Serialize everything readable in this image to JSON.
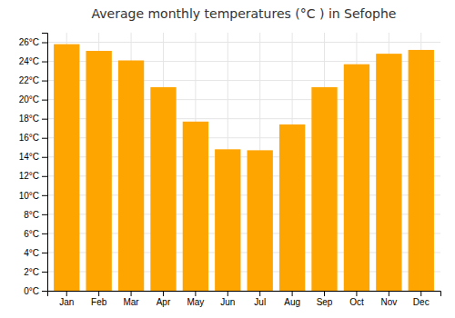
{
  "chart_data": {
    "type": "bar",
    "title": "Average monthly temperatures (°C ) in Sefophe",
    "categories": [
      "Jan",
      "Feb",
      "Mar",
      "Apr",
      "May",
      "Jun",
      "Jul",
      "Aug",
      "Sep",
      "Oct",
      "Nov",
      "Dec"
    ],
    "values": [
      25.8,
      25.1,
      24.1,
      21.3,
      17.7,
      14.8,
      14.7,
      17.4,
      21.3,
      23.7,
      24.8,
      25.2
    ],
    "color": "#FFA500",
    "ylim": [
      0,
      27
    ],
    "yticks": [
      {
        "value": 0,
        "label": "0°C"
      },
      {
        "value": 2,
        "label": "2°C"
      },
      {
        "value": 4,
        "label": "4°C"
      },
      {
        "value": 6,
        "label": "6°C"
      },
      {
        "value": 8,
        "label": "8°C"
      },
      {
        "value": 10,
        "label": "10°C"
      },
      {
        "value": 12,
        "label": "12°C"
      },
      {
        "value": 14,
        "label": "14°C"
      },
      {
        "value": 16,
        "label": "16°C"
      },
      {
        "value": 18,
        "label": "18°C"
      },
      {
        "value": 20,
        "label": "20°C"
      },
      {
        "value": 22,
        "label": "22°C"
      },
      {
        "value": 24,
        "label": "24°C"
      },
      {
        "value": 26,
        "label": "26°C"
      }
    ],
    "grid": true
  }
}
